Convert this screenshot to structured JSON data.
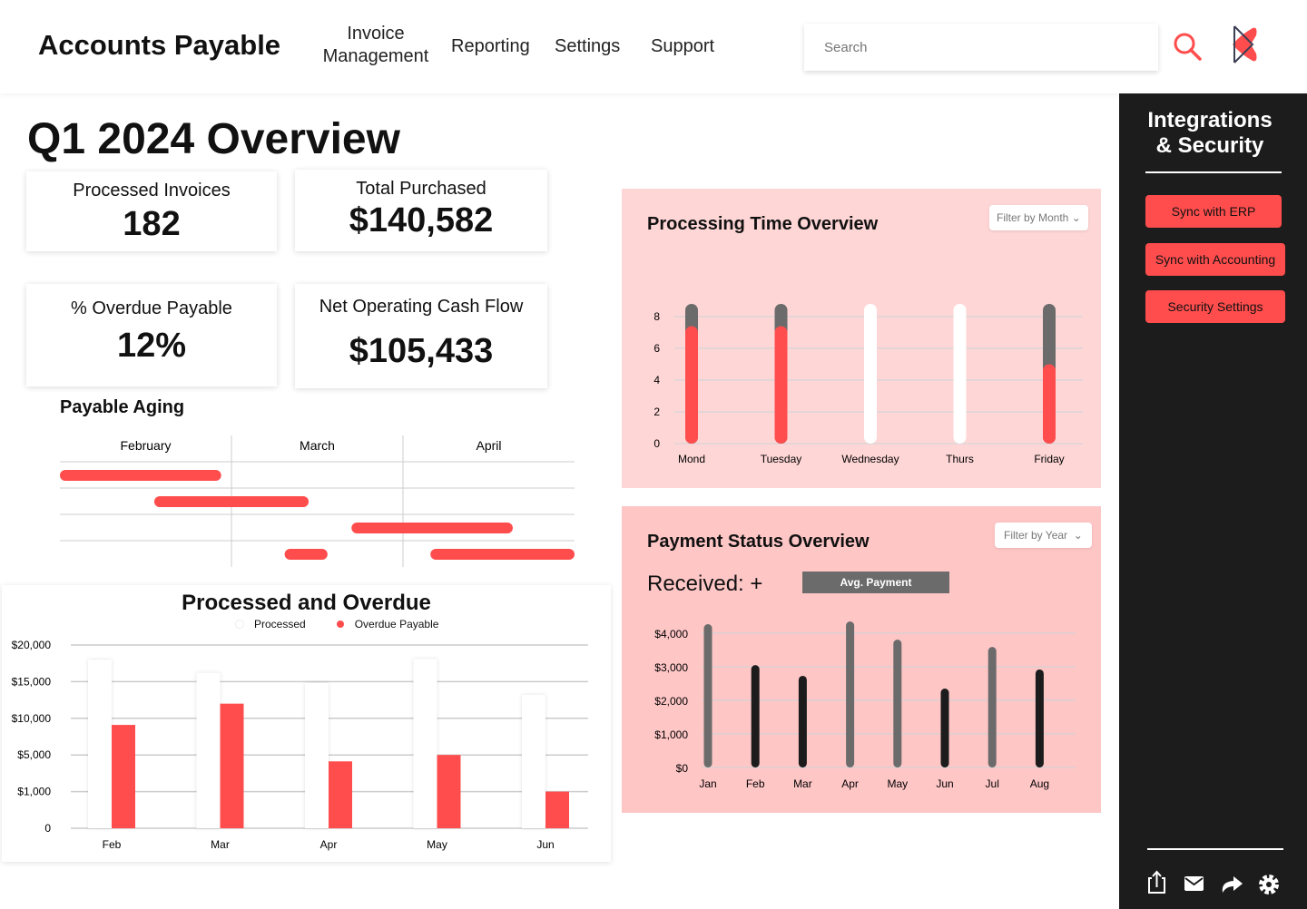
{
  "header": {
    "title": "Accounts Payable",
    "nav": [
      "Invoice Management",
      "Reporting",
      "Settings",
      "Support"
    ],
    "search_placeholder": "Search",
    "icons": [
      "search-icon",
      "logo-icon"
    ]
  },
  "page_title": "Q1 2024 Overview",
  "kpis": [
    {
      "label": "Processed Invoices",
      "value": "182"
    },
    {
      "label": "Total Purchased",
      "value": "$140,582"
    },
    {
      "label": "% Overdue Payable",
      "value": "12%"
    },
    {
      "label": "Net Operating Cash Flow",
      "value": "$105,433"
    }
  ],
  "sidebar": {
    "title_line1": "Integrations",
    "title_line2": "& Security",
    "buttons": [
      "Sync with ERP",
      "Sync with Accounting",
      "Security Settings"
    ],
    "footer_icons": [
      "share-icon",
      "mail-icon",
      "forward-icon",
      "settings-icon"
    ]
  },
  "colors": {
    "accent": "#ff4d4d",
    "sidebar": "#1c1c1c",
    "panel1": "#ffd6d6",
    "panel2": "#ffc6c6",
    "gray": "#6b6b6b",
    "dark": "#1c1c1c"
  },
  "chart_data": [
    {
      "type": "gantt",
      "title": "Payable Aging",
      "columns": [
        "February",
        "March",
        "April"
      ],
      "rows": [
        [
          [
            0,
            0.94
          ]
        ],
        [
          [
            0.55,
            1.45
          ]
        ],
        [
          [
            1.7,
            2.64
          ]
        ],
        [
          [
            1.31,
            1.56
          ],
          [
            2.16,
            3.0
          ]
        ]
      ]
    },
    {
      "type": "bar",
      "title": "Processed and Overdue",
      "categories": [
        "Feb",
        "Mar",
        "Apr",
        "May",
        "Jun"
      ],
      "yticks": [
        0,
        1000,
        5000,
        10000,
        15000,
        20000
      ],
      "ytick_labels": [
        "0",
        "$1,000",
        "$5,000",
        "$10,000",
        "$15,000",
        "$20,000"
      ],
      "series": [
        {
          "name": "Processed",
          "color": "#ffffff",
          "values": [
            18000,
            16200,
            14800,
            18100,
            13200
          ]
        },
        {
          "name": "Overdue Payable",
          "color": "#ff4d4d",
          "values": [
            9100,
            12000,
            4300,
            5000,
            1000
          ]
        }
      ],
      "grid": true,
      "legend": "top"
    },
    {
      "type": "bar",
      "title": "Processing Time Overview",
      "filter": "Filter by Month",
      "categories": [
        "Mond",
        "Tuesday",
        "Wednesday",
        "Thurs",
        "Friday"
      ],
      "yticks": [
        0,
        2,
        4,
        6,
        8
      ],
      "ylim": [
        0,
        8.8
      ],
      "total": [
        8.8,
        8.8,
        8.8,
        8.8,
        8.8
      ],
      "red": [
        7.4,
        7.4,
        0,
        0,
        5.0
      ],
      "grid": true
    },
    {
      "type": "bar",
      "title": "Payment Status Overview",
      "filter": "Filter by Year",
      "received_label": "Received: +",
      "avg_label": "Avg. Payment",
      "categories": [
        "Jan",
        "Feb",
        "Mar",
        "Apr",
        "May",
        "Jun",
        "Jul",
        "Aug"
      ],
      "yticks": [
        0,
        1000,
        2000,
        3000,
        4000
      ],
      "ytick_labels": [
        "$0",
        "$1,000",
        "$2,000",
        "$3,000",
        "$4,000"
      ],
      "values": [
        4270,
        3050,
        2730,
        4350,
        3810,
        2350,
        3590,
        2920
      ],
      "bar_colors": [
        "#6b6b6b",
        "#1c1c1c",
        "#1c1c1c",
        "#6b6b6b",
        "#6b6b6b",
        "#1c1c1c",
        "#6b6b6b",
        "#1c1c1c"
      ],
      "grid": true
    }
  ]
}
